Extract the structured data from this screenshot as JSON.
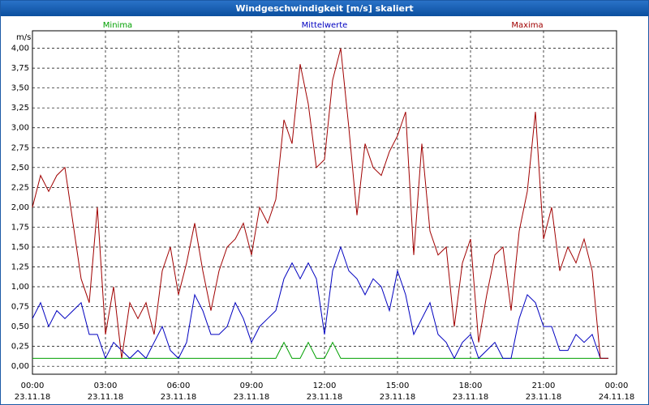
{
  "title": "Windgeschwindigkeit [m/s] skaliert",
  "chart_data": {
    "type": "line",
    "y_label": "m/s",
    "x": [
      "23.11.18 00:00",
      "23.11.18 00:20",
      "23.11.18 00:40",
      "23.11.18 01:00",
      "23.11.18 01:20",
      "23.11.18 01:40",
      "23.11.18 02:00",
      "23.11.18 02:20",
      "23.11.18 02:40",
      "23.11.18 03:00",
      "23.11.18 03:20",
      "23.11.18 03:40",
      "23.11.18 04:00",
      "23.11.18 04:20",
      "23.11.18 04:40",
      "23.11.18 05:00",
      "23.11.18 05:20",
      "23.11.18 05:40",
      "23.11.18 06:00",
      "23.11.18 06:20",
      "23.11.18 06:40",
      "23.11.18 07:00",
      "23.11.18 07:20",
      "23.11.18 07:40",
      "23.11.18 08:00",
      "23.11.18 08:20",
      "23.11.18 08:40",
      "23.11.18 09:00",
      "23.11.18 09:20",
      "23.11.18 09:40",
      "23.11.18 10:00",
      "23.11.18 10:20",
      "23.11.18 10:40",
      "23.11.18 11:00",
      "23.11.18 11:20",
      "23.11.18 11:40",
      "23.11.18 12:00",
      "23.11.18 12:20",
      "23.11.18 12:40",
      "23.11.18 13:00",
      "23.11.18 13:20",
      "23.11.18 13:40",
      "23.11.18 14:00",
      "23.11.18 14:20",
      "23.11.18 14:40",
      "23.11.18 15:00",
      "23.11.18 15:20",
      "23.11.18 15:40",
      "23.11.18 16:00",
      "23.11.18 16:20",
      "23.11.18 16:40",
      "23.11.18 17:00",
      "23.11.18 17:20",
      "23.11.18 17:40",
      "23.11.18 18:00",
      "23.11.18 18:20",
      "23.11.18 18:40",
      "23.11.18 19:00",
      "23.11.18 19:20",
      "23.11.18 19:40",
      "23.11.18 20:00",
      "23.11.18 20:20",
      "23.11.18 20:40",
      "23.11.18 21:00",
      "23.11.18 21:20",
      "23.11.18 21:40",
      "23.11.18 22:00",
      "23.11.18 22:20",
      "23.11.18 22:40",
      "23.11.18 23:00",
      "23.11.18 23:20",
      "23.11.18 23:40"
    ],
    "series": [
      {
        "name": "Minima",
        "color": "#00a000",
        "values": [
          0.1,
          0.1,
          0.1,
          0.1,
          0.1,
          0.1,
          0.1,
          0.1,
          0.1,
          0.1,
          0.1,
          0.1,
          0.1,
          0.1,
          0.1,
          0.1,
          0.1,
          0.1,
          0.1,
          0.1,
          0.1,
          0.1,
          0.1,
          0.1,
          0.1,
          0.1,
          0.1,
          0.1,
          0.1,
          0.1,
          0.1,
          0.3,
          0.1,
          0.1,
          0.3,
          0.1,
          0.1,
          0.3,
          0.1,
          0.1,
          0.1,
          0.1,
          0.1,
          0.1,
          0.1,
          0.1,
          0.1,
          0.1,
          0.1,
          0.1,
          0.1,
          0.1,
          0.1,
          0.1,
          0.1,
          0.1,
          0.1,
          0.1,
          0.1,
          0.1,
          0.1,
          0.1,
          0.1,
          0.1,
          0.1,
          0.1,
          0.1,
          0.1,
          0.1,
          0.1,
          0.1,
          0.1
        ]
      },
      {
        "name": "Mittelwerte",
        "color": "#0000c0",
        "values": [
          0.6,
          0.8,
          0.5,
          0.7,
          0.6,
          0.7,
          0.8,
          0.4,
          0.4,
          0.1,
          0.3,
          0.2,
          0.1,
          0.2,
          0.1,
          0.3,
          0.5,
          0.2,
          0.1,
          0.3,
          0.9,
          0.7,
          0.4,
          0.4,
          0.5,
          0.8,
          0.6,
          0.3,
          0.5,
          0.6,
          0.7,
          1.1,
          1.3,
          1.1,
          1.3,
          1.1,
          0.4,
          1.2,
          1.5,
          1.2,
          1.1,
          0.9,
          1.1,
          1.0,
          0.7,
          1.2,
          0.9,
          0.4,
          0.6,
          0.8,
          0.4,
          0.3,
          0.1,
          0.3,
          0.4,
          0.1,
          0.2,
          0.3,
          0.1,
          0.1,
          0.6,
          0.9,
          0.8,
          0.5,
          0.5,
          0.2,
          0.2,
          0.4,
          0.3,
          0.4,
          0.1,
          0.1
        ]
      },
      {
        "name": "Maxima",
        "color": "#a00000",
        "values": [
          2.0,
          2.4,
          2.2,
          2.4,
          2.5,
          1.8,
          1.1,
          0.8,
          2.0,
          0.4,
          1.0,
          0.1,
          0.8,
          0.6,
          0.8,
          0.4,
          1.2,
          1.5,
          0.9,
          1.3,
          1.8,
          1.2,
          0.7,
          1.2,
          1.5,
          1.6,
          1.8,
          1.4,
          2.0,
          1.8,
          2.1,
          3.1,
          2.8,
          3.8,
          3.3,
          2.5,
          2.6,
          3.6,
          4.0,
          3.0,
          1.9,
          2.8,
          2.5,
          2.4,
          2.7,
          2.9,
          3.2,
          1.4,
          2.8,
          1.7,
          1.4,
          1.5,
          0.5,
          1.3,
          1.6,
          0.3,
          0.9,
          1.4,
          1.5,
          0.7,
          1.7,
          2.2,
          3.2,
          1.6,
          2.0,
          1.2,
          1.5,
          1.3,
          1.6,
          1.2,
          0.1,
          0.1
        ]
      }
    ],
    "xlim": [
      "23.11.18 00:00",
      "24.11.18 00:00"
    ],
    "xticks": [
      {
        "value": "23.11.18 00:00",
        "label": "00:00",
        "date": "23.11.18"
      },
      {
        "value": "23.11.18 03:00",
        "label": "03:00",
        "date": "23.11.18"
      },
      {
        "value": "23.11.18 06:00",
        "label": "06:00",
        "date": "23.11.18"
      },
      {
        "value": "23.11.18 09:00",
        "label": "09:00",
        "date": "23.11.18"
      },
      {
        "value": "23.11.18 12:00",
        "label": "12:00",
        "date": "23.11.18"
      },
      {
        "value": "23.11.18 15:00",
        "label": "15:00",
        "date": "23.11.18"
      },
      {
        "value": "23.11.18 18:00",
        "label": "18:00",
        "date": "23.11.18"
      },
      {
        "value": "23.11.18 21:00",
        "label": "21:00",
        "date": "23.11.18"
      },
      {
        "value": "24.11.18 00:00",
        "label": "00:00",
        "date": "24.11.18"
      }
    ],
    "ylim": [
      -0.1,
      4.22
    ],
    "yticks": [
      {
        "value": 0,
        "label": "0,00"
      },
      {
        "value": 0.25,
        "label": "0,25"
      },
      {
        "value": 0.5,
        "label": "0,50"
      },
      {
        "value": 0.75,
        "label": "0,75"
      },
      {
        "value": 1,
        "label": "1,00"
      },
      {
        "value": 1.25,
        "label": "1,25"
      },
      {
        "value": 1.5,
        "label": "1,50"
      },
      {
        "value": 1.75,
        "label": "1,75"
      },
      {
        "value": 2,
        "label": "2,00"
      },
      {
        "value": 2.25,
        "label": "2,25"
      },
      {
        "value": 2.5,
        "label": "2,50"
      },
      {
        "value": 2.75,
        "label": "2,75"
      },
      {
        "value": 3,
        "label": "3,00"
      },
      {
        "value": 3.25,
        "label": "3,25"
      },
      {
        "value": 3.5,
        "label": "3,50"
      },
      {
        "value": 3.75,
        "label": "3,75"
      },
      {
        "value": 4,
        "label": "4,00"
      }
    ],
    "grid": true
  }
}
